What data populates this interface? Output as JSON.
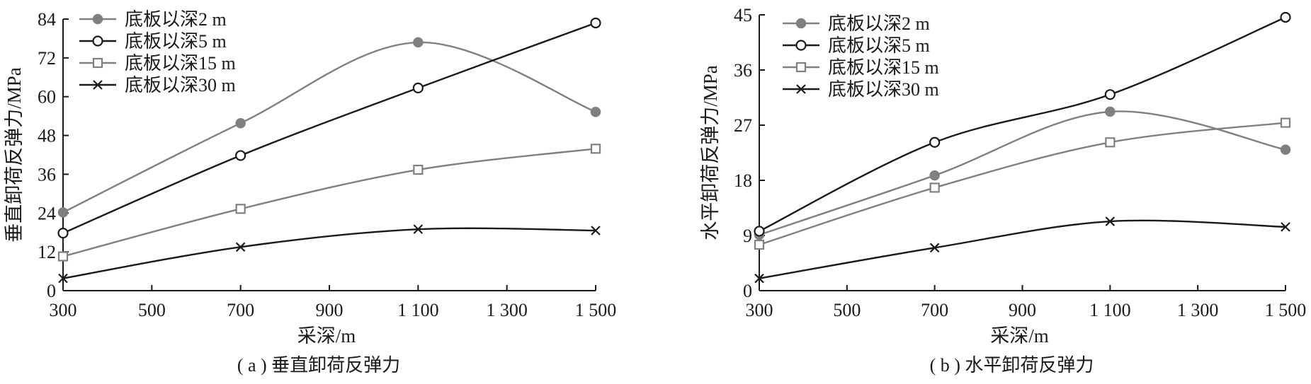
{
  "chart_data": [
    {
      "type": "line",
      "caption": "( a ) 垂直卸荷反弹力",
      "xlabel": "采深/m",
      "ylabel": "垂直卸荷反弹力/MPa",
      "xlim": [
        300,
        1500
      ],
      "ylim": [
        0,
        84
      ],
      "xticks": [
        300,
        500,
        700,
        900,
        1100,
        1300,
        1500
      ],
      "xtick_labels": [
        "300",
        "500",
        "700",
        "900",
        "1 100",
        "1 300",
        "1 500"
      ],
      "yticks": [
        0,
        12,
        24,
        36,
        48,
        60,
        72,
        84
      ],
      "ytick_labels": [
        "0",
        "12",
        "24",
        "36",
        "48",
        "60",
        "72",
        "84"
      ],
      "legend_position": "top-left",
      "grid": false,
      "x": [
        300,
        700,
        1100,
        1500
      ],
      "series": [
        {
          "name": "底板以深2 m",
          "values": [
            24.2,
            51.8,
            76.8,
            55.3
          ],
          "color": "#808080",
          "marker": "filled-circle"
        },
        {
          "name": "底板以深5 m",
          "values": [
            17.8,
            41.8,
            62.7,
            82.8
          ],
          "color": "#1a1a1a",
          "marker": "open-circle"
        },
        {
          "name": "底板以深15 m",
          "values": [
            10.6,
            25.3,
            37.4,
            43.9
          ],
          "color": "#808080",
          "marker": "open-square"
        },
        {
          "name": "底板以深30 m",
          "values": [
            3.8,
            13.5,
            19.0,
            18.6
          ],
          "color": "#1a1a1a",
          "marker": "cross"
        }
      ]
    },
    {
      "type": "line",
      "caption": "( b ) 水平卸荷反弹力",
      "xlabel": "采深/m",
      "ylabel": "水平卸荷反弹力/MPa",
      "xlim": [
        300,
        1500
      ],
      "ylim": [
        0,
        45
      ],
      "xticks": [
        300,
        500,
        700,
        900,
        1100,
        1300,
        1500
      ],
      "xtick_labels": [
        "300",
        "500",
        "700",
        "900",
        "1 100",
        "1 300",
        "1 500"
      ],
      "yticks": [
        0,
        9,
        18,
        27,
        36,
        45
      ],
      "ytick_labels": [
        "0",
        "9",
        "18",
        "27",
        "36",
        "45"
      ],
      "legend_position": "top-left",
      "grid": false,
      "x": [
        300,
        700,
        1100,
        1500
      ],
      "series": [
        {
          "name": "底板以深2 m",
          "values": [
            9.1,
            18.8,
            29.2,
            23.0
          ],
          "color": "#808080",
          "marker": "filled-circle"
        },
        {
          "name": "底板以深5 m",
          "values": [
            9.7,
            24.2,
            32.0,
            44.6
          ],
          "color": "#1a1a1a",
          "marker": "open-circle"
        },
        {
          "name": "底板以深15 m",
          "values": [
            7.5,
            16.8,
            24.2,
            27.4
          ],
          "color": "#808080",
          "marker": "open-square"
        },
        {
          "name": "底板以深30 m",
          "values": [
            2.0,
            7.0,
            11.3,
            10.4
          ],
          "color": "#1a1a1a",
          "marker": "cross"
        }
      ]
    }
  ]
}
